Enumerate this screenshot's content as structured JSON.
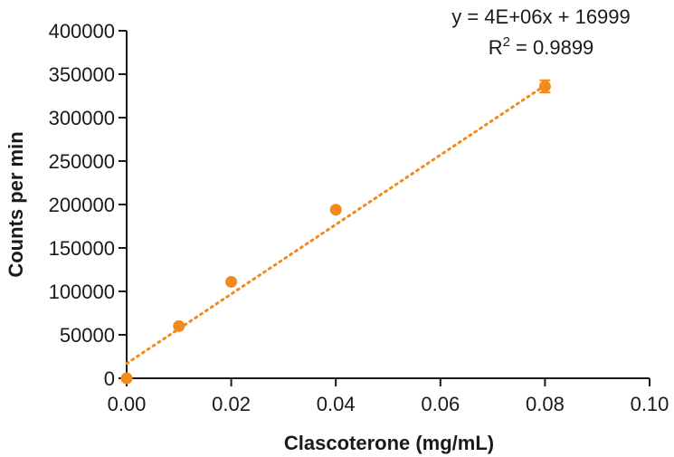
{
  "chart_data": {
    "type": "scatter",
    "xlabel": "Clascoterone (mg/mL)",
    "ylabel": "Counts per min",
    "xlim": [
      0,
      0.1
    ],
    "ylim": [
      0,
      400000
    ],
    "x_ticks": [
      "0.00",
      "0.02",
      "0.04",
      "0.06",
      "0.08",
      "0.10"
    ],
    "y_ticks": [
      "0",
      "50000",
      "100000",
      "150000",
      "200000",
      "250000",
      "300000",
      "350000",
      "400000"
    ],
    "grid": false,
    "series": [
      {
        "color": "#F28A1E",
        "points": [
          {
            "x": 0.0,
            "y": 0,
            "err": 0
          },
          {
            "x": 0.01,
            "y": 60000,
            "err": 0
          },
          {
            "x": 0.02,
            "y": 111000,
            "err": 0
          },
          {
            "x": 0.04,
            "y": 194000,
            "err": 0
          },
          {
            "x": 0.08,
            "y": 336000,
            "err": 7000
          }
        ]
      }
    ],
    "trendline": {
      "type": "linear",
      "style": "dotted",
      "color": "#F28A1E",
      "slope": 4000000,
      "intercept": 16999,
      "x_range": [
        0,
        0.08
      ],
      "equation": "y = 4E+06x + 16999",
      "r2_prefix": "R",
      "r2_superscript": "2",
      "r2_value": " = 0.9899"
    }
  }
}
